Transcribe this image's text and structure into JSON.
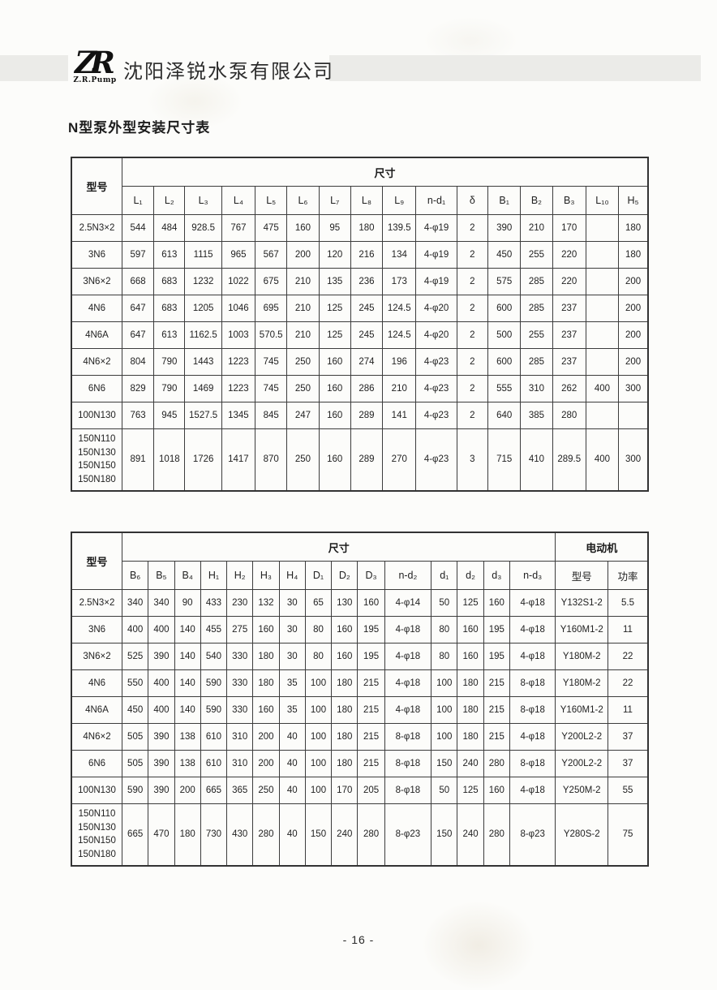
{
  "page": {
    "logo_text": "ZR",
    "logo_subtext": "Z.R.Pump",
    "company_name": "沈阳泽锐水泵有限公司",
    "title": "N型泵外型安装尺寸表",
    "page_number": "- 16 -"
  },
  "table1": {
    "model_header": "型号",
    "dims_header": "尺寸",
    "columns": [
      "L₁",
      "L₂",
      "L₃",
      "L₄",
      "L₅",
      "L₆",
      "L₇",
      "L₈",
      "L₉",
      "n-d₁",
      "δ",
      "B₁",
      "B₂",
      "B₃",
      "L₁₀",
      "H₅"
    ],
    "rows": [
      {
        "model": "2.5N3×2",
        "values": [
          "544",
          "484",
          "928.5",
          "767",
          "475",
          "160",
          "95",
          "180",
          "139.5",
          "4-φ19",
          "2",
          "390",
          "210",
          "170",
          "",
          "180"
        ]
      },
      {
        "model": "3N6",
        "values": [
          "597",
          "613",
          "1115",
          "965",
          "567",
          "200",
          "120",
          "216",
          "134",
          "4-φ19",
          "2",
          "450",
          "255",
          "220",
          "",
          "180"
        ]
      },
      {
        "model": "3N6×2",
        "values": [
          "668",
          "683",
          "1232",
          "1022",
          "675",
          "210",
          "135",
          "236",
          "173",
          "4-φ19",
          "2",
          "575",
          "285",
          "220",
          "",
          "200"
        ]
      },
      {
        "model": "4N6",
        "values": [
          "647",
          "683",
          "1205",
          "1046",
          "695",
          "210",
          "125",
          "245",
          "124.5",
          "4-φ20",
          "2",
          "600",
          "285",
          "237",
          "",
          "200"
        ]
      },
      {
        "model": "4N6A",
        "values": [
          "647",
          "613",
          "1162.5",
          "1003",
          "570.5",
          "210",
          "125",
          "245",
          "124.5",
          "4-φ20",
          "2",
          "500",
          "255",
          "237",
          "",
          "200"
        ]
      },
      {
        "model": "4N6×2",
        "values": [
          "804",
          "790",
          "1443",
          "1223",
          "745",
          "250",
          "160",
          "274",
          "196",
          "4-φ23",
          "2",
          "600",
          "285",
          "237",
          "",
          "200"
        ]
      },
      {
        "model": "6N6",
        "values": [
          "829",
          "790",
          "1469",
          "1223",
          "745",
          "250",
          "160",
          "286",
          "210",
          "4-φ23",
          "2",
          "555",
          "310",
          "262",
          "400",
          "300"
        ]
      },
      {
        "model": "100N130",
        "values": [
          "763",
          "945",
          "1527.5",
          "1345",
          "845",
          "247",
          "160",
          "289",
          "141",
          "4-φ23",
          "2",
          "640",
          "385",
          "280",
          "",
          ""
        ]
      },
      {
        "model": "150N110\n150N130\n150N150\n150N180",
        "values": [
          "891",
          "1018",
          "1726",
          "1417",
          "870",
          "250",
          "160",
          "289",
          "270",
          "4-φ23",
          "3",
          "715",
          "410",
          "289.5",
          "400",
          "300"
        ]
      }
    ]
  },
  "table2": {
    "model_header": "型号",
    "dims_header": "尺寸",
    "motor_header": "电动机",
    "columns": [
      "B₆",
      "B₅",
      "B₄",
      "H₁",
      "H₂",
      "H₃",
      "H₄",
      "D₁",
      "D₂",
      "D₃",
      "n-d₂",
      "d₁",
      "d₂",
      "d₃",
      "n-d₃"
    ],
    "motor_columns": [
      "型号",
      "功率"
    ],
    "rows": [
      {
        "model": "2.5N3×2",
        "values": [
          "340",
          "340",
          "90",
          "433",
          "230",
          "132",
          "30",
          "65",
          "130",
          "160",
          "4-φ14",
          "50",
          "125",
          "160",
          "4-φ18",
          "Y132S1-2",
          "5.5"
        ]
      },
      {
        "model": "3N6",
        "values": [
          "400",
          "400",
          "140",
          "455",
          "275",
          "160",
          "30",
          "80",
          "160",
          "195",
          "4-φ18",
          "80",
          "160",
          "195",
          "4-φ18",
          "Y160M1-2",
          "11"
        ]
      },
      {
        "model": "3N6×2",
        "values": [
          "525",
          "390",
          "140",
          "540",
          "330",
          "180",
          "30",
          "80",
          "160",
          "195",
          "4-φ18",
          "80",
          "160",
          "195",
          "4-φ18",
          "Y180M-2",
          "22"
        ]
      },
      {
        "model": "4N6",
        "values": [
          "550",
          "400",
          "140",
          "590",
          "330",
          "180",
          "35",
          "100",
          "180",
          "215",
          "4-φ18",
          "100",
          "180",
          "215",
          "8-φ18",
          "Y180M-2",
          "22"
        ]
      },
      {
        "model": "4N6A",
        "values": [
          "450",
          "400",
          "140",
          "590",
          "330",
          "160",
          "35",
          "100",
          "180",
          "215",
          "4-φ18",
          "100",
          "180",
          "215",
          "8-φ18",
          "Y160M1-2",
          "11"
        ]
      },
      {
        "model": "4N6×2",
        "values": [
          "505",
          "390",
          "138",
          "610",
          "310",
          "200",
          "40",
          "100",
          "180",
          "215",
          "8-φ18",
          "100",
          "180",
          "215",
          "4-φ18",
          "Y200L2-2",
          "37"
        ]
      },
      {
        "model": "6N6",
        "values": [
          "505",
          "390",
          "138",
          "610",
          "310",
          "200",
          "40",
          "100",
          "180",
          "215",
          "8-φ18",
          "150",
          "240",
          "280",
          "8-φ18",
          "Y200L2-2",
          "37"
        ]
      },
      {
        "model": "100N130",
        "values": [
          "590",
          "390",
          "200",
          "665",
          "365",
          "250",
          "40",
          "100",
          "170",
          "205",
          "8-φ18",
          "50",
          "125",
          "160",
          "4-φ18",
          "Y250M-2",
          "55"
        ]
      },
      {
        "model": "150N110\n150N130\n150N150\n150N180",
        "values": [
          "665",
          "470",
          "180",
          "730",
          "430",
          "280",
          "40",
          "150",
          "240",
          "280",
          "8-φ23",
          "150",
          "240",
          "280",
          "8-φ23",
          "Y280S-2",
          "75"
        ]
      }
    ]
  }
}
